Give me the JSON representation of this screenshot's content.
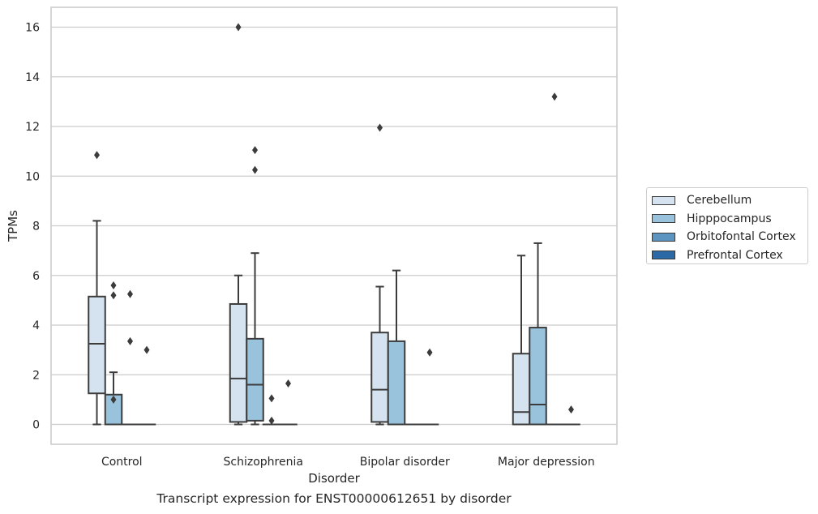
{
  "chart_data": {
    "type": "boxplot",
    "title": "Transcript expression for ENST00000612651 by disorder",
    "xlabel": "Disorder",
    "ylabel": "TPMs",
    "ylim": [
      -0.8,
      16.8
    ],
    "yticks": [
      0,
      2,
      4,
      6,
      8,
      10,
      12,
      14,
      16
    ],
    "grid": true,
    "legend_position": "right",
    "categories": [
      "Control",
      "Schizophrenia",
      "Bipolar disorder",
      "Major depression"
    ],
    "series": [
      {
        "name": "Cerebellum",
        "color": "#d5e3f1",
        "boxes": [
          {
            "whisker_low": 0,
            "q1": 1.25,
            "median": 3.25,
            "q3": 5.15,
            "whisker_high": 8.2,
            "outliers": [
              10.85
            ]
          },
          {
            "whisker_low": 0,
            "q1": 0.1,
            "median": 1.85,
            "q3": 4.85,
            "whisker_high": 6.0,
            "outliers": [
              16.0
            ]
          },
          {
            "whisker_low": 0,
            "q1": 0.1,
            "median": 1.4,
            "q3": 3.7,
            "whisker_high": 5.55,
            "outliers": [
              11.95
            ]
          },
          {
            "whisker_low": 0,
            "q1": 0,
            "median": 0.5,
            "q3": 2.85,
            "whisker_high": 6.8,
            "outliers": []
          }
        ]
      },
      {
        "name": "Hipppocampus",
        "color": "#99c2dc",
        "boxes": [
          {
            "whisker_low": 0,
            "q1": 0,
            "median": 0,
            "q3": 1.2,
            "whisker_high": 2.1,
            "outliers": [
              5.6,
              5.2,
              1.0
            ]
          },
          {
            "whisker_low": 0,
            "q1": 0.15,
            "median": 1.6,
            "q3": 3.45,
            "whisker_high": 6.9,
            "outliers": [
              11.05,
              10.25
            ]
          },
          {
            "whisker_low": 0,
            "q1": 0,
            "median": 0,
            "q3": 3.35,
            "whisker_high": 6.2,
            "outliers": []
          },
          {
            "whisker_low": 0,
            "q1": 0,
            "median": 0.8,
            "q3": 3.9,
            "whisker_high": 7.3,
            "outliers": []
          }
        ]
      },
      {
        "name": "Orbitofontal Cortex",
        "color": "#5b94c0",
        "boxes": [
          {
            "whisker_low": 0,
            "q1": 0,
            "median": 0,
            "q3": 0,
            "whisker_high": 0,
            "outliers": [
              5.25,
              3.35
            ]
          },
          {
            "whisker_low": 0,
            "q1": 0,
            "median": 0,
            "q3": 0,
            "whisker_high": 0,
            "outliers": [
              1.05,
              0.15
            ]
          },
          {
            "whisker_low": 0,
            "q1": 0,
            "median": 0,
            "q3": 0,
            "whisker_high": 0,
            "outliers": []
          },
          {
            "whisker_low": 0,
            "q1": 0,
            "median": 0,
            "q3": 0,
            "whisker_high": 0,
            "outliers": [
              13.2
            ]
          }
        ]
      },
      {
        "name": "Prefrontal Cortex",
        "color": "#2b6aa6",
        "boxes": [
          {
            "whisker_low": 0,
            "q1": 0,
            "median": 0,
            "q3": 0,
            "whisker_high": 0,
            "outliers": [
              3.0
            ]
          },
          {
            "whisker_low": 0,
            "q1": 0,
            "median": 0,
            "q3": 0,
            "whisker_high": 0,
            "outliers": [
              1.65
            ]
          },
          {
            "whisker_low": 0,
            "q1": 0,
            "median": 0,
            "q3": 0,
            "whisker_high": 0,
            "outliers": [
              2.9
            ]
          },
          {
            "whisker_low": 0,
            "q1": 0,
            "median": 0,
            "q3": 0,
            "whisker_high": 0,
            "outliers": [
              0.6
            ]
          }
        ]
      }
    ]
  }
}
